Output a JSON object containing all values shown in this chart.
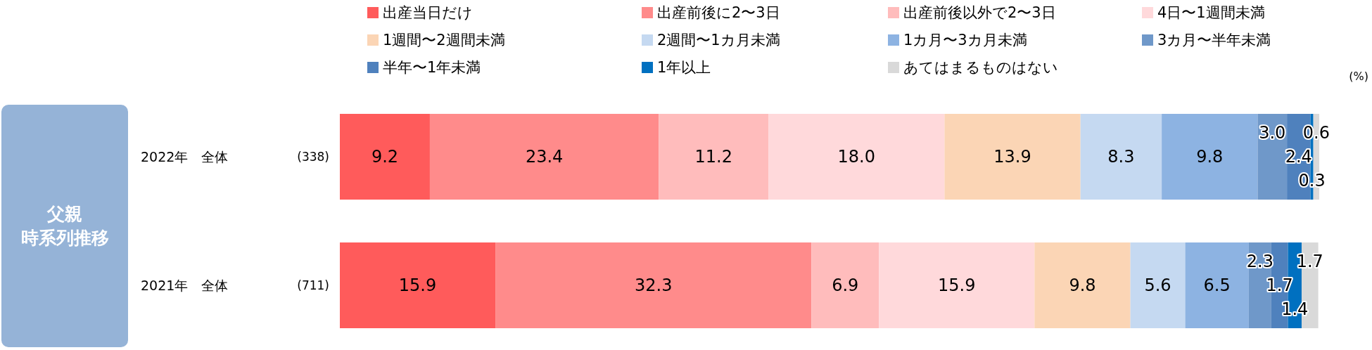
{
  "chart_data": {
    "type": "bar",
    "orientation": "horizontal",
    "stacked": true,
    "legend": "top",
    "title": "父親",
    "subtitle": "時系列推移",
    "categories": [
      "2022年　全体",
      "2021年　全体"
    ],
    "annotations": [
      "(338)",
      "(711)",
      "(%)"
    ],
    "series": [
      {
        "name": "出産当日だけ",
        "color": "#ff5b5b",
        "values": [
          9.2,
          15.9
        ],
        "value_labels": [
          "9.2",
          "15.9"
        ]
      },
      {
        "name": "出産前後に2〜3日",
        "color": "#ff8b8b",
        "values": [
          23.4,
          32.3
        ],
        "value_labels": [
          "23.4",
          "32.3"
        ]
      },
      {
        "name": "出産前後以外で2〜3日",
        "color": "#ffbcbc",
        "values": [
          11.2,
          6.9
        ],
        "value_labels": [
          "11.2",
          "6.9"
        ]
      },
      {
        "name": "4日〜1週間未満",
        "color": "#ffd9db",
        "values": [
          18.0,
          15.9
        ],
        "value_labels": [
          "18.0",
          "15.9"
        ]
      },
      {
        "name": "1週間〜2週間未満",
        "color": "#fbd5b5",
        "values": [
          13.9,
          9.8
        ],
        "value_labels": [
          "13.9",
          "9.8"
        ]
      },
      {
        "name": "2週間〜1カ月未満",
        "color": "#c5d9f1",
        "values": [
          8.3,
          5.6
        ],
        "value_labels": [
          "8.3",
          "5.6"
        ]
      },
      {
        "name": "1カ月〜3カ月未満",
        "color": "#8db3e2",
        "values": [
          9.8,
          6.5
        ],
        "value_labels": [
          "9.8",
          "6.5"
        ]
      },
      {
        "name": "3カ月〜半年未満",
        "color": "#6f98c9",
        "values": [
          3.0,
          2.3
        ],
        "value_labels": [
          "3.0",
          "2.3"
        ]
      },
      {
        "name": "半年〜1年未満",
        "color": "#4f81bd",
        "values": [
          2.4,
          1.7
        ],
        "value_labels": [
          "2.4",
          "1.7"
        ]
      },
      {
        "name": "1年以上",
        "color": "#0070c0",
        "values": [
          0.3,
          1.4
        ],
        "value_labels": [
          "0.3",
          "1.4"
        ]
      },
      {
        "name": "あてはまるものはない",
        "color": "#d9d9d9",
        "values": [
          0.6,
          1.7
        ],
        "value_labels": [
          "0.6",
          "1.7"
        ]
      }
    ]
  }
}
